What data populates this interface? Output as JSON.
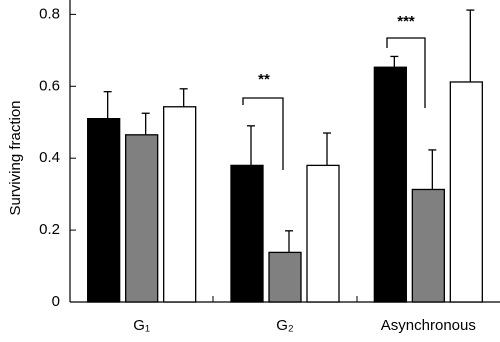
{
  "chart_data": {
    "type": "bar",
    "y_label": "Surviving fraction",
    "categories": [
      "G₁",
      "G₂",
      "Asynchronous"
    ],
    "series": [
      {
        "color": "#000000",
        "values": [
          0.51,
          0.38,
          0.653
        ],
        "errors": [
          0.075,
          0.11,
          0.03
        ]
      },
      {
        "color": "#808080",
        "values": [
          0.465,
          0.138,
          0.313
        ],
        "errors": [
          0.06,
          0.06,
          0.11
        ]
      },
      {
        "color": "#ffffff",
        "values": [
          0.543,
          0.38,
          0.612
        ],
        "errors": [
          0.05,
          0.09,
          0.2
        ]
      }
    ],
    "ylim": [
      0,
      0.84
    ],
    "yticks": [
      0,
      0.2,
      0.4,
      0.6,
      0.8
    ],
    "annotations": [
      {
        "text": "**"
      },
      {
        "text": "***"
      }
    ]
  }
}
